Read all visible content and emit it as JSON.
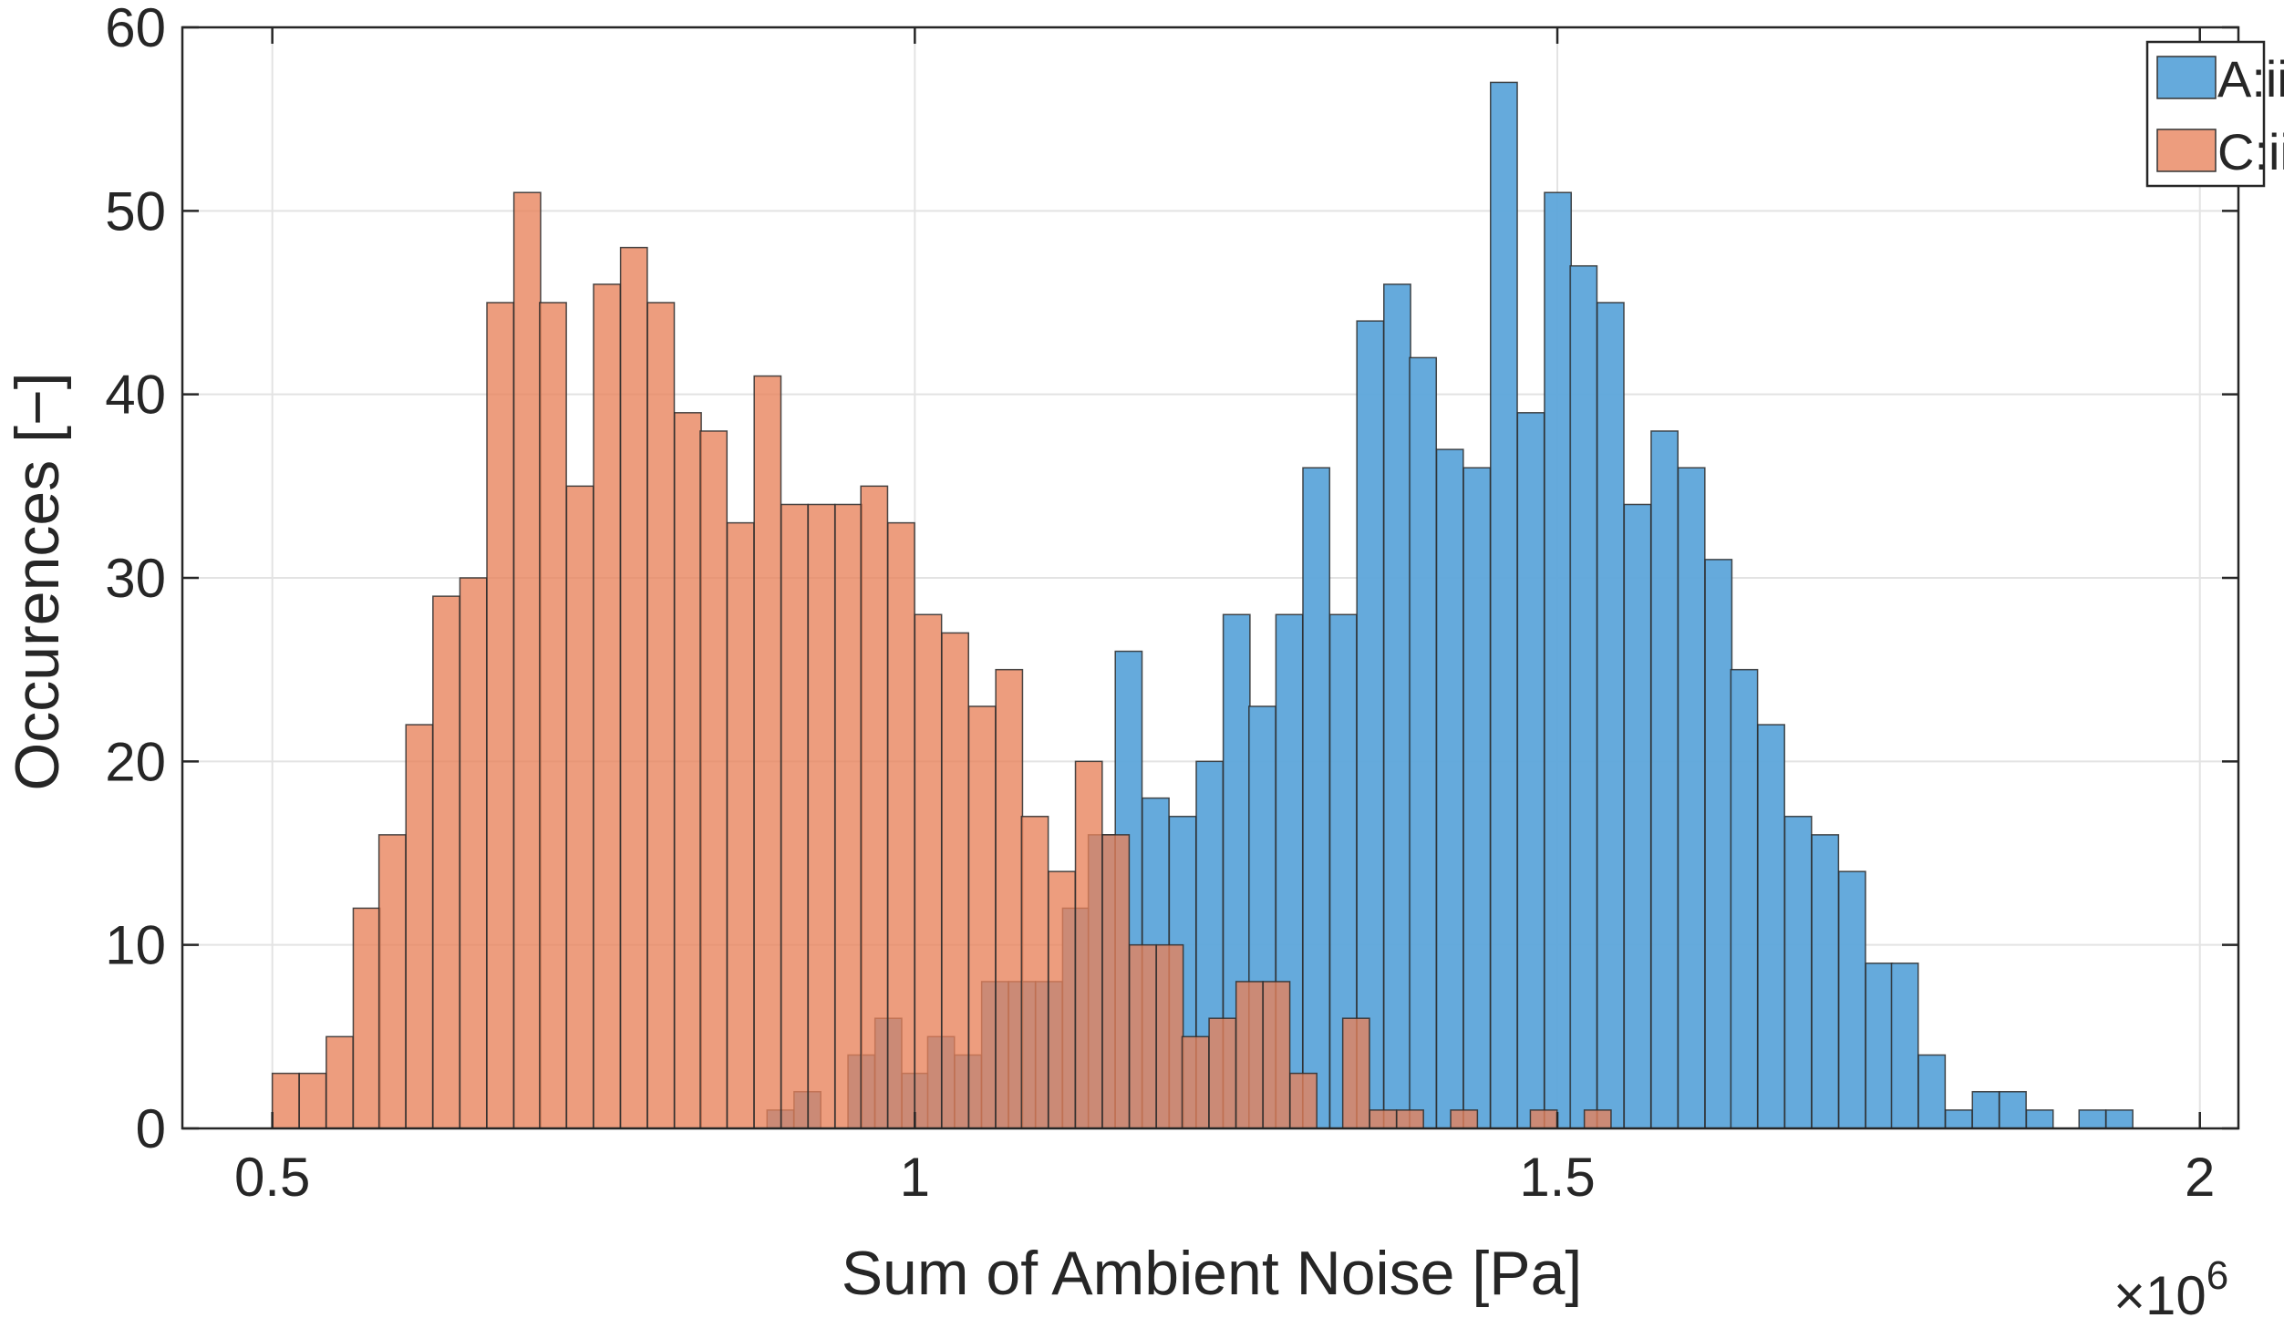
{
  "chart_data": {
    "type": "bar",
    "xlabel": "Sum of Ambient Noise [Pa]",
    "ylabel": "Occurences [−]",
    "x_multiplier_label": "×10",
    "x_multiplier_exponent": "6",
    "xlim": [
      0.43,
      2.03
    ],
    "ylim": [
      0,
      60
    ],
    "xticks": [
      0.5,
      1,
      1.5,
      2
    ],
    "xtick_labels": [
      "0.5",
      "1",
      "1.5",
      "2"
    ],
    "yticks": [
      0,
      10,
      20,
      30,
      40,
      50,
      60
    ],
    "ytick_labels": [
      "0",
      "10",
      "20",
      "30",
      "40",
      "50",
      "60"
    ],
    "grid": true,
    "legend_position": "top-right",
    "bin_width": 0.0208,
    "series": [
      {
        "name": "A:ii",
        "color": "#5DA5DA",
        "fill_opacity": 0.95,
        "bins": [
          [
            0.885,
            1
          ],
          [
            0.906,
            2
          ],
          [
            0.948,
            4
          ],
          [
            0.969,
            6
          ],
          [
            0.99,
            3
          ],
          [
            1.01,
            5
          ],
          [
            1.031,
            4
          ],
          [
            1.052,
            8
          ],
          [
            1.073,
            8
          ],
          [
            1.094,
            8
          ],
          [
            1.115,
            12
          ],
          [
            1.135,
            16
          ],
          [
            1.156,
            26
          ],
          [
            1.177,
            18
          ],
          [
            1.198,
            17
          ],
          [
            1.219,
            20
          ],
          [
            1.24,
            28
          ],
          [
            1.26,
            23
          ],
          [
            1.281,
            28
          ],
          [
            1.302,
            36
          ],
          [
            1.323,
            28
          ],
          [
            1.344,
            44
          ],
          [
            1.365,
            46
          ],
          [
            1.385,
            42
          ],
          [
            1.406,
            37
          ],
          [
            1.427,
            36
          ],
          [
            1.448,
            57
          ],
          [
            1.469,
            39
          ],
          [
            1.49,
            51
          ],
          [
            1.51,
            47
          ],
          [
            1.531,
            45
          ],
          [
            1.552,
            34
          ],
          [
            1.573,
            38
          ],
          [
            1.594,
            36
          ],
          [
            1.615,
            31
          ],
          [
            1.635,
            25
          ],
          [
            1.656,
            22
          ],
          [
            1.677,
            17
          ],
          [
            1.698,
            16
          ],
          [
            1.719,
            14
          ],
          [
            1.74,
            9
          ],
          [
            1.76,
            9
          ],
          [
            1.781,
            4
          ],
          [
            1.802,
            1
          ],
          [
            1.823,
            2
          ],
          [
            1.844,
            2
          ],
          [
            1.865,
            1
          ],
          [
            1.906,
            1
          ],
          [
            1.927,
            1
          ]
        ]
      },
      {
        "name": "C:ii",
        "color": "#E8825A",
        "fill_opacity": 0.78,
        "bins": [
          [
            0.5,
            3
          ],
          [
            0.521,
            3
          ],
          [
            0.542,
            5
          ],
          [
            0.563,
            12
          ],
          [
            0.583,
            16
          ],
          [
            0.604,
            22
          ],
          [
            0.625,
            29
          ],
          [
            0.646,
            30
          ],
          [
            0.667,
            45
          ],
          [
            0.688,
            51
          ],
          [
            0.708,
            45
          ],
          [
            0.729,
            35
          ],
          [
            0.75,
            46
          ],
          [
            0.771,
            48
          ],
          [
            0.792,
            45
          ],
          [
            0.813,
            39
          ],
          [
            0.833,
            38
          ],
          [
            0.854,
            33
          ],
          [
            0.875,
            41
          ],
          [
            0.896,
            34
          ],
          [
            0.917,
            34
          ],
          [
            0.938,
            34
          ],
          [
            0.958,
            35
          ],
          [
            0.979,
            33
          ],
          [
            1.0,
            28
          ],
          [
            1.021,
            27
          ],
          [
            1.042,
            23
          ],
          [
            1.063,
            25
          ],
          [
            1.083,
            17
          ],
          [
            1.104,
            14
          ],
          [
            1.125,
            20
          ],
          [
            1.146,
            16
          ],
          [
            1.167,
            10
          ],
          [
            1.188,
            10
          ],
          [
            1.208,
            5
          ],
          [
            1.229,
            6
          ],
          [
            1.25,
            8
          ],
          [
            1.271,
            8
          ],
          [
            1.292,
            3
          ],
          [
            1.333,
            6
          ],
          [
            1.354,
            1
          ],
          [
            1.375,
            1
          ],
          [
            1.417,
            1
          ],
          [
            1.479,
            1
          ],
          [
            1.521,
            1
          ]
        ]
      }
    ]
  }
}
